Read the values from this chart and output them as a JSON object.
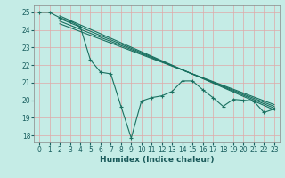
{
  "xlabel": "Humidex (Indice chaleur)",
  "background_color": "#c5ece6",
  "grid_color": "#e0a8a8",
  "line_color": "#1a7060",
  "xlim": [
    -0.5,
    23.5
  ],
  "ylim": [
    17.6,
    25.4
  ],
  "xticks": [
    0,
    1,
    2,
    3,
    4,
    5,
    6,
    7,
    8,
    9,
    10,
    11,
    12,
    13,
    14,
    15,
    16,
    17,
    18,
    19,
    20,
    21,
    22,
    23
  ],
  "yticks": [
    18,
    19,
    20,
    21,
    22,
    23,
    24,
    25
  ],
  "series_main": {
    "x": [
      0,
      1,
      2,
      3,
      4,
      5,
      6,
      7,
      8,
      9,
      10,
      11,
      12,
      13,
      14,
      15,
      16,
      17,
      18,
      19,
      20,
      21,
      22,
      23
    ],
    "y": [
      25.0,
      25.0,
      24.7,
      24.5,
      24.2,
      22.3,
      21.6,
      21.5,
      19.65,
      17.85,
      19.95,
      20.15,
      20.25,
      20.5,
      21.1,
      21.1,
      20.6,
      20.15,
      19.65,
      20.05,
      20.0,
      19.95,
      19.3,
      19.5
    ]
  },
  "band_line1": {
    "x": [
      2,
      23
    ],
    "y": [
      24.8,
      19.45
    ]
  },
  "band_line2": {
    "x": [
      2,
      23
    ],
    "y": [
      24.65,
      19.55
    ]
  },
  "band_line3": {
    "x": [
      2,
      23
    ],
    "y": [
      24.5,
      19.65
    ]
  },
  "band_line4": {
    "x": [
      2,
      23
    ],
    "y": [
      24.35,
      19.75
    ]
  }
}
